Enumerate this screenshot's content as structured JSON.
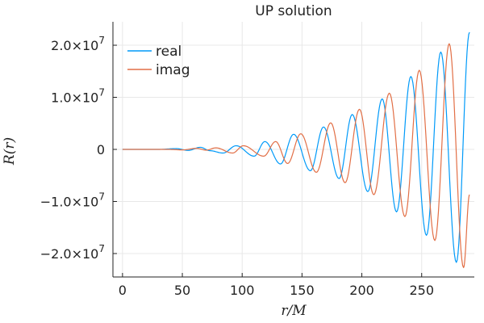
{
  "chart_data": {
    "type": "line",
    "title": "UP solution",
    "xlabel": "r/M",
    "ylabel": "R(r)",
    "xlim": [
      -8,
      294
    ],
    "ylim": [
      -24500000,
      24500000
    ],
    "grid": true,
    "legend_position": "top-left",
    "x_ticks": [
      0,
      50,
      100,
      150,
      200,
      250
    ],
    "x_tick_labels": [
      "0",
      "50",
      "100",
      "150",
      "200",
      "250"
    ],
    "y_ticks": [
      20000000,
      10000000,
      0,
      -10000000,
      -20000000
    ],
    "y_tick_labels": [
      {
        "mantissa": "2.0×10",
        "exp": "7"
      },
      {
        "mantissa": "1.0×10",
        "exp": "7"
      },
      {
        "mantissa": "0",
        "exp": ""
      },
      {
        "mantissa": "−1.0×10",
        "exp": "7"
      },
      {
        "mantissa": "−2.0×10",
        "exp": "7"
      }
    ],
    "series": [
      {
        "name": "real",
        "color": "#009af9",
        "points": [
          [
            0,
            0
          ],
          [
            30,
            0
          ],
          [
            45,
            150000
          ],
          [
            55,
            -200000
          ],
          [
            65,
            400000
          ],
          [
            73,
            -250000
          ],
          [
            84,
            -700000
          ],
          [
            95,
            700000
          ],
          [
            110,
            -1300000
          ],
          [
            119,
            1500000
          ],
          [
            132,
            -2800000
          ],
          [
            143,
            2900000
          ],
          [
            157,
            -4100000
          ],
          [
            168,
            4300000
          ],
          [
            181,
            -5600000
          ],
          [
            192,
            6700000
          ],
          [
            205,
            -8100000
          ],
          [
            217,
            9700000
          ],
          [
            229,
            -12000000
          ],
          [
            241,
            14000000
          ],
          [
            254,
            -16500000
          ],
          [
            266,
            18700000
          ],
          [
            279,
            -21700000
          ],
          [
            290,
            22500000
          ]
        ]
      },
      {
        "name": "imag",
        "color": "#e26f46",
        "points": [
          [
            0,
            0
          ],
          [
            38,
            0
          ],
          [
            50,
            -100000
          ],
          [
            62,
            200000
          ],
          [
            70,
            -150000
          ],
          [
            78,
            300000
          ],
          [
            92,
            -700000
          ],
          [
            101,
            700000
          ],
          [
            118,
            -1300000
          ],
          [
            128,
            1500000
          ],
          [
            138,
            -2700000
          ],
          [
            149,
            3000000
          ],
          [
            162,
            -4400000
          ],
          [
            174,
            5100000
          ],
          [
            186,
            -6400000
          ],
          [
            198,
            7700000
          ],
          [
            210,
            -8700000
          ],
          [
            223,
            10800000
          ],
          [
            236,
            -12900000
          ],
          [
            248,
            15200000
          ],
          [
            261,
            -17500000
          ],
          [
            273,
            20300000
          ],
          [
            285,
            -22700000
          ],
          [
            290,
            -8700000
          ]
        ]
      }
    ]
  }
}
